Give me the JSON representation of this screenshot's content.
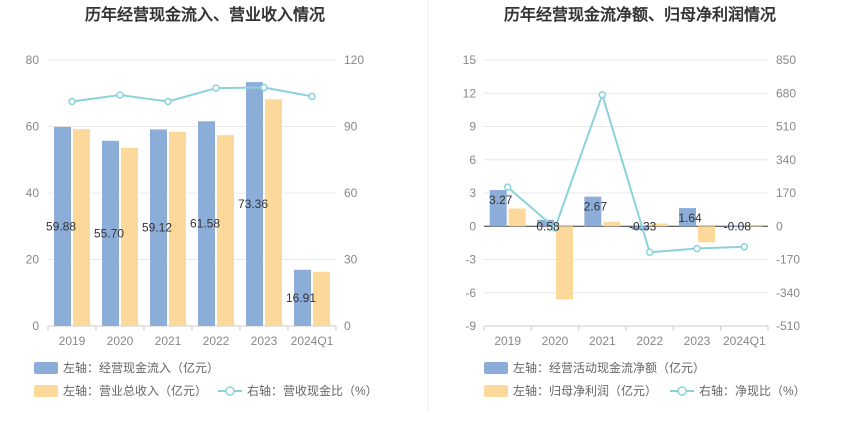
{
  "chart_data": [
    {
      "type": "bar",
      "title": "历年经营现金流入、营业收入情况",
      "categories": [
        "2019",
        "2020",
        "2021",
        "2022",
        "2023",
        "2024Q1"
      ],
      "y_left": {
        "ticks": [
          "0",
          "20",
          "40",
          "60",
          "80"
        ],
        "ylim": [
          0,
          80
        ]
      },
      "y_right": {
        "ticks": [
          "0",
          "30",
          "60",
          "90",
          "120"
        ],
        "ylim": [
          0,
          120
        ]
      },
      "series": [
        {
          "name": "左轴：经营现金流入（亿元）",
          "type": "bar",
          "axis": "left",
          "color": "#8dadd9",
          "values": [
            59.88,
            55.7,
            59.12,
            61.58,
            73.36,
            16.91
          ],
          "labels": [
            "59.88",
            "55.70",
            "59.12",
            "61.58",
            "73.36",
            "16.91"
          ]
        },
        {
          "name": "左轴：营业总收入（亿元）",
          "type": "bar",
          "axis": "left",
          "color": "#fcd99a",
          "values": [
            59.2,
            53.6,
            58.4,
            57.4,
            68.2,
            16.3
          ]
        },
        {
          "name": "右轴：营收现金比（%）",
          "type": "line",
          "axis": "right",
          "color": "#8bd3dc",
          "values": [
            101.3,
            104.2,
            101.3,
            107.3,
            107.6,
            103.6
          ]
        }
      ],
      "grid": true,
      "legend": "bottom"
    },
    {
      "type": "bar",
      "title": "历年经营现金流净额、归母净利润情况",
      "categories": [
        "2019",
        "2020",
        "2021",
        "2022",
        "2023",
        "2024Q1"
      ],
      "y_left": {
        "ticks": [
          "-9",
          "-6",
          "-3",
          "0",
          "3",
          "6",
          "9",
          "12",
          "15"
        ],
        "ylim": [
          -9,
          15
        ]
      },
      "y_right": {
        "ticks": [
          "-510",
          "-340",
          "-170",
          "0",
          "170",
          "340",
          "510",
          "680",
          "850"
        ],
        "ylim": [
          -510,
          850
        ]
      },
      "series": [
        {
          "name": "左轴：经营活动现金流净额（亿元）",
          "type": "bar",
          "axis": "left",
          "color": "#8dadd9",
          "values": [
            3.27,
            0.58,
            2.67,
            -0.33,
            1.64,
            -0.08
          ],
          "labels": [
            "3.27",
            "0.58",
            "2.67",
            "-0.33",
            "1.64",
            "-0.08"
          ]
        },
        {
          "name": "左轴：归母净利润（亿元）",
          "type": "bar",
          "axis": "left",
          "color": "#fcd99a",
          "values": [
            1.6,
            -6.6,
            0.4,
            0.25,
            -1.45,
            0.0
          ]
        },
        {
          "name": "右轴：净现比（%）",
          "type": "line",
          "axis": "right",
          "color": "#8bd3dc",
          "values": [
            200,
            -9,
            672,
            -133,
            -114,
            -105
          ]
        }
      ],
      "grid": true,
      "legend": "bottom"
    }
  ]
}
